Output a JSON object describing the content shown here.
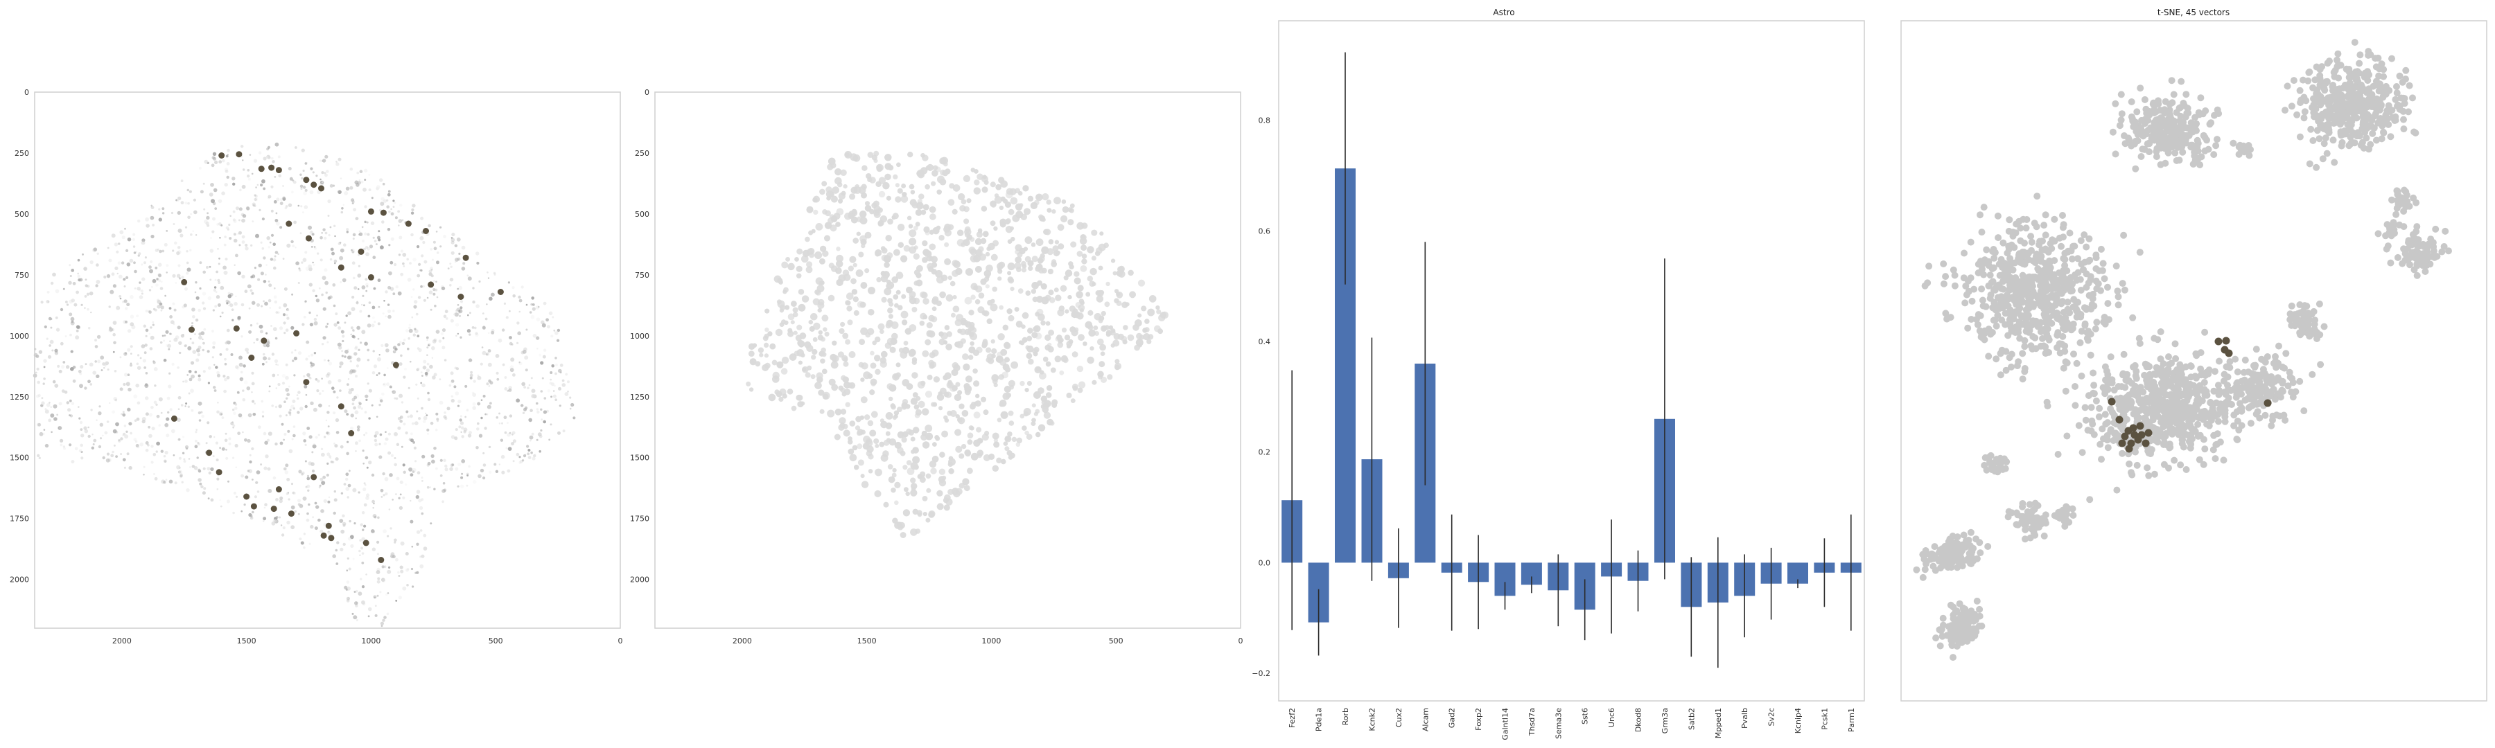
{
  "chart_data": [
    {
      "type": "scatter",
      "panel": "spatial-left",
      "x_ticks": [
        "2000",
        "1500",
        "1000",
        "500",
        "0"
      ],
      "y_ticks": [
        "0",
        "250",
        "500",
        "750",
        "1000",
        "1250",
        "1500",
        "1750",
        "2000"
      ],
      "xlim": [
        2350,
        0
      ],
      "ylim": [
        2200,
        0
      ],
      "grid": false,
      "highlight_color": "#5b5240",
      "background_color": "#b4b4b4",
      "highlighted_points": [
        [
          1600,
          260
        ],
        [
          1530,
          255
        ],
        [
          1440,
          315
        ],
        [
          1400,
          310
        ],
        [
          1370,
          320
        ],
        [
          1260,
          360
        ],
        [
          1230,
          380
        ],
        [
          1200,
          395
        ],
        [
          1000,
          490
        ],
        [
          950,
          495
        ],
        [
          850,
          540
        ],
        [
          780,
          570
        ],
        [
          620,
          680
        ],
        [
          480,
          820
        ],
        [
          640,
          840
        ],
        [
          1120,
          720
        ],
        [
          1250,
          600
        ],
        [
          1330,
          540
        ],
        [
          1040,
          655
        ],
        [
          1000,
          760
        ],
        [
          760,
          790
        ],
        [
          1750,
          780
        ],
        [
          1720,
          975
        ],
        [
          1540,
          970
        ],
        [
          1300,
          990
        ],
        [
          1480,
          1090
        ],
        [
          1120,
          1290
        ],
        [
          1080,
          1400
        ],
        [
          1790,
          1340
        ],
        [
          1650,
          1480
        ],
        [
          1610,
          1560
        ],
        [
          1370,
          1630
        ],
        [
          1230,
          1580
        ],
        [
          1500,
          1660
        ],
        [
          1470,
          1700
        ],
        [
          1390,
          1710
        ],
        [
          1320,
          1730
        ],
        [
          1170,
          1780
        ],
        [
          1190,
          1820
        ],
        [
          1160,
          1830
        ],
        [
          1020,
          1850
        ],
        [
          960,
          1920
        ],
        [
          1260,
          1190
        ],
        [
          1430,
          1020
        ],
        [
          900,
          1120
        ]
      ]
    },
    {
      "type": "scatter",
      "panel": "spatial-right",
      "x_ticks": [
        "2000",
        "1500",
        "1000",
        "500",
        "0"
      ],
      "y_ticks": [
        "0",
        "250",
        "500",
        "750",
        "1000",
        "1250",
        "1500",
        "1750",
        "2000"
      ],
      "xlim": [
        2350,
        0
      ],
      "ylim": [
        2200,
        0
      ],
      "grid": false,
      "highlight_color": "#5b5240",
      "background_color": "#dadada"
    },
    {
      "type": "bar",
      "title": "Astro",
      "categories": [
        "Fezf2",
        "Pde1a",
        "Rorb",
        "Kcnk2",
        "Cux2",
        "Alcam",
        "Gad2",
        "Foxp2",
        "Galntl14",
        "Thsd7a",
        "Sema3e",
        "Sst6",
        "Unc6",
        "Dkod8",
        "Grm3a",
        "Satb2",
        "Mpped1",
        "Pvalb",
        "Sv2c",
        "Kcnip4",
        "Pcsk1",
        "Parm1"
      ],
      "values": [
        0.113,
        -0.108,
        0.713,
        0.187,
        -0.028,
        0.36,
        -0.018,
        -0.035,
        -0.06,
        -0.04,
        -0.05,
        -0.085,
        -0.025,
        -0.033,
        0.26,
        -0.08,
        -0.072,
        -0.06,
        -0.038,
        -0.038,
        -0.018,
        -0.018
      ],
      "errors": [
        0.235,
        0.06,
        0.21,
        0.22,
        0.09,
        0.22,
        0.105,
        0.085,
        0.025,
        0.015,
        0.065,
        0.055,
        0.103,
        0.055,
        0.29,
        0.09,
        0.118,
        0.075,
        0.065,
        0.008,
        0.062,
        0.105
      ],
      "y_ticks": [
        "−0.2",
        "0.0",
        "0.2",
        "0.4",
        "0.6",
        "0.8"
      ],
      "ylim": [
        -0.25,
        0.98
      ],
      "bar_color": "#4c72b0",
      "error_color": "#2b2b2b",
      "grid": false
    },
    {
      "type": "scatter",
      "title": "t-SNE, 45 vectors",
      "grid": false,
      "highlight_color": "#5b5240",
      "background_color": "#c8c8c8"
    }
  ]
}
